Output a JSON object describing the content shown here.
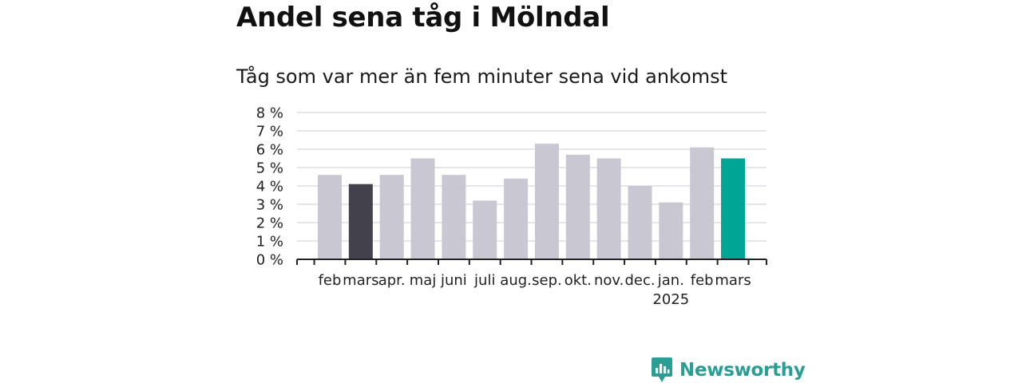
{
  "title": "Andel sena tåg i Mölndal",
  "subtitle": "Tåg som var mer än fem minuter sena vid ankomst",
  "brand": "Newsworthy",
  "colors": {
    "bar_default": "#c8c7d2",
    "bar_highlight_previous": "#43414c",
    "bar_highlight_current": "#00a596",
    "brand": "#2a9d94"
  },
  "chart_data": {
    "type": "bar",
    "title": "Andel sena tåg i Mölndal",
    "subtitle": "Tåg som var mer än fem minuter sena vid ankomst",
    "xlabel": "",
    "ylabel": "",
    "categories": [
      "feb",
      "mars",
      "apr.",
      "maj",
      "juni",
      "juli",
      "aug.",
      "sep.",
      "okt.",
      "nov.",
      "dec.",
      "jan.",
      "feb",
      "mars"
    ],
    "year_label": {
      "text": "2025",
      "under_category_index": 11
    },
    "values": [
      4.6,
      4.1,
      4.6,
      5.5,
      4.6,
      3.2,
      4.4,
      6.3,
      5.7,
      5.5,
      4.0,
      3.1,
      6.1,
      5.5
    ],
    "highlight": {
      "1": "previous",
      "13": "current"
    },
    "ylim": [
      0,
      8
    ],
    "yticks": [
      0,
      1,
      2,
      3,
      4,
      5,
      6,
      7,
      8
    ],
    "ytick_labels": [
      "0 %",
      "1 %",
      "2 %",
      "3 %",
      "4 %",
      "5 %",
      "6 %",
      "7 %",
      "8 %"
    ],
    "grid": true,
    "legend": "none"
  }
}
